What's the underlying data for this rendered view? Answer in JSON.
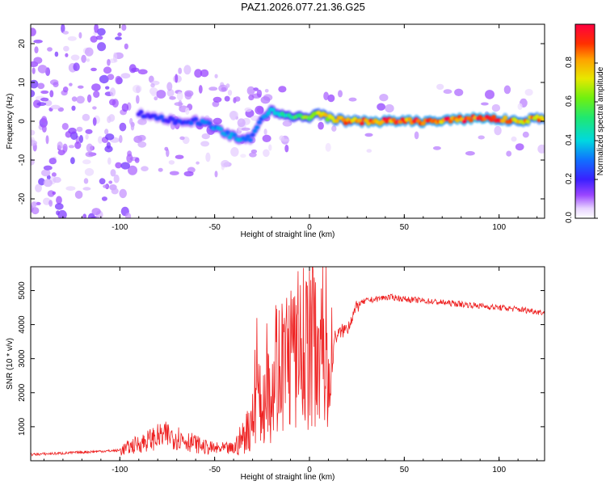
{
  "title": "PAZ1.2026.077.21.36.G25",
  "chart_data": [
    {
      "type": "heatmap",
      "name": "spectrogram",
      "xlabel": "Height of straight line (km)",
      "ylabel": "Frequency (Hz)",
      "xlim": [
        -147,
        124
      ],
      "ylim": [
        -25,
        25
      ],
      "xticks": [
        -100,
        -50,
        0,
        50,
        100
      ],
      "yticks": [
        -20,
        -10,
        0,
        10,
        20
      ],
      "colorbar": {
        "label": "Normalized spectral amplitude",
        "range": [
          0,
          1
        ],
        "ticks": [
          0.0,
          0.2,
          0.4,
          0.6,
          0.8
        ]
      },
      "ridge": {
        "x": [
          -90,
          -80,
          -70,
          -60,
          -52,
          -45,
          -40,
          -35,
          -30,
          -25,
          -20,
          -15,
          -10,
          -5,
          0,
          5,
          10,
          20,
          30,
          50,
          70,
          90,
          110,
          124
        ],
        "freq": [
          2,
          1,
          0,
          0,
          -1,
          -3,
          -4,
          -5,
          -4,
          1,
          3,
          2,
          1,
          1,
          1,
          2,
          1,
          0,
          0,
          0,
          0,
          1,
          0,
          1
        ],
        "amplitude": [
          0.2,
          0.25,
          0.25,
          0.3,
          0.35,
          0.35,
          0.4,
          0.35,
          0.3,
          0.3,
          0.45,
          0.5,
          0.55,
          0.6,
          0.7,
          0.75,
          0.8,
          0.9,
          0.95,
          0.95,
          0.95,
          1.0,
          0.9,
          0.85
        ]
      }
    },
    {
      "type": "line",
      "name": "snr",
      "xlabel": "Height of straight line (km)",
      "ylabel": "SNR (10 * v/v)",
      "xlim": [
        -147,
        124
      ],
      "ylim": [
        0,
        5700
      ],
      "xticks": [
        -100,
        -50,
        0,
        50,
        100
      ],
      "yticks": [
        1000,
        2000,
        3000,
        4000,
        5000
      ],
      "color": "#ee2222",
      "series": {
        "x": [
          -147,
          -140,
          -130,
          -120,
          -110,
          -100,
          -95,
          -90,
          -85,
          -80,
          -75,
          -70,
          -65,
          -60,
          -55,
          -50,
          -45,
          -40,
          -35,
          -30,
          -27,
          -25,
          -22,
          -20,
          -18,
          -15,
          -12,
          -10,
          -8,
          -5,
          -3,
          0,
          3,
          6,
          9,
          11,
          13,
          17,
          20,
          23,
          26,
          30,
          35,
          40,
          45,
          50,
          60,
          70,
          80,
          90,
          100,
          110,
          118,
          124
        ],
        "y": [
          180,
          200,
          220,
          250,
          280,
          300,
          400,
          500,
          600,
          700,
          750,
          700,
          600,
          500,
          400,
          350,
          350,
          350,
          700,
          1200,
          2000,
          1200,
          3200,
          1700,
          3000,
          2600,
          3000,
          3200,
          2900,
          3400,
          3300,
          3500,
          3600,
          3700,
          3600,
          1500,
          3600,
          3800,
          3900,
          4300,
          4600,
          4700,
          4750,
          4800,
          4800,
          4750,
          4700,
          4650,
          4600,
          4550,
          4500,
          4450,
          4400,
          4350
        ]
      }
    }
  ]
}
